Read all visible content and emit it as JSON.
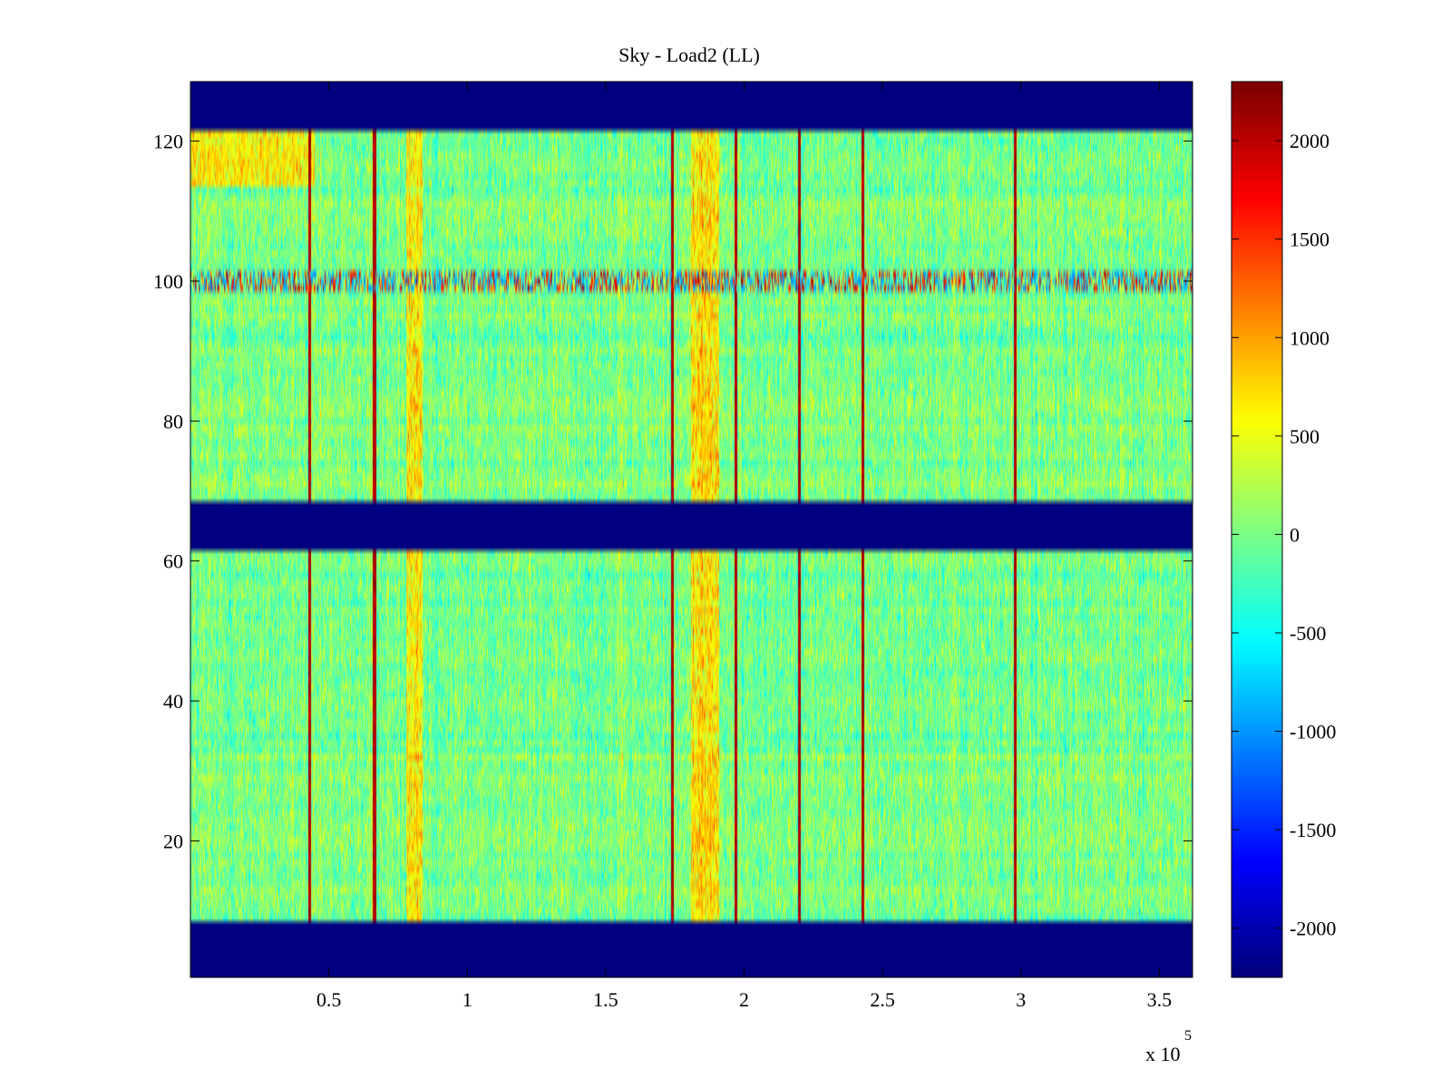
{
  "chart_data": {
    "type": "heatmap",
    "title": "Sky - Load2 (LL)",
    "xlabel": "",
    "ylabel": "",
    "x_range": [
      0,
      362000
    ],
    "y_range": [
      0.5,
      128.5
    ],
    "x_multiplier_label": "x 10",
    "x_multiplier_exponent": "5",
    "x_ticks": [
      {
        "value": 50000,
        "label": "0.5"
      },
      {
        "value": 100000,
        "label": "1"
      },
      {
        "value": 150000,
        "label": "1.5"
      },
      {
        "value": 200000,
        "label": "2"
      },
      {
        "value": 250000,
        "label": "2.5"
      },
      {
        "value": 300000,
        "label": "3"
      },
      {
        "value": 350000,
        "label": "3.5"
      }
    ],
    "y_ticks": [
      {
        "value": 20,
        "label": "20"
      },
      {
        "value": 40,
        "label": "40"
      },
      {
        "value": 60,
        "label": "60"
      },
      {
        "value": 80,
        "label": "80"
      },
      {
        "value": 100,
        "label": "100"
      },
      {
        "value": 120,
        "label": "120"
      }
    ],
    "colorbar": {
      "colormap": "jet",
      "range": [
        -2250,
        2300
      ],
      "ticks": [
        {
          "value": -2000,
          "label": "-2000"
        },
        {
          "value": -1500,
          "label": "-1500"
        },
        {
          "value": -1000,
          "label": "-1000"
        },
        {
          "value": -500,
          "label": "-500"
        },
        {
          "value": 0,
          "label": "0"
        },
        {
          "value": 500,
          "label": "500"
        },
        {
          "value": 1000,
          "label": "1000"
        },
        {
          "value": 1500,
          "label": "1500"
        },
        {
          "value": 2000,
          "label": "2000"
        }
      ]
    },
    "baseline_value": 0,
    "masked_value": -2250,
    "masked_row_ranges": [
      [
        0.5,
        8.5
      ],
      [
        61.5,
        68.5
      ],
      [
        121.5,
        128.5
      ]
    ],
    "hot_columns_x": [
      43000,
      66500,
      174000,
      197000,
      220000,
      243000,
      298000
    ],
    "warm_bands_x": [
      [
        78000,
        84000
      ],
      [
        181000,
        191000
      ]
    ],
    "noisy_rows_y": [
      [
        98.5,
        101.5
      ]
    ]
  }
}
